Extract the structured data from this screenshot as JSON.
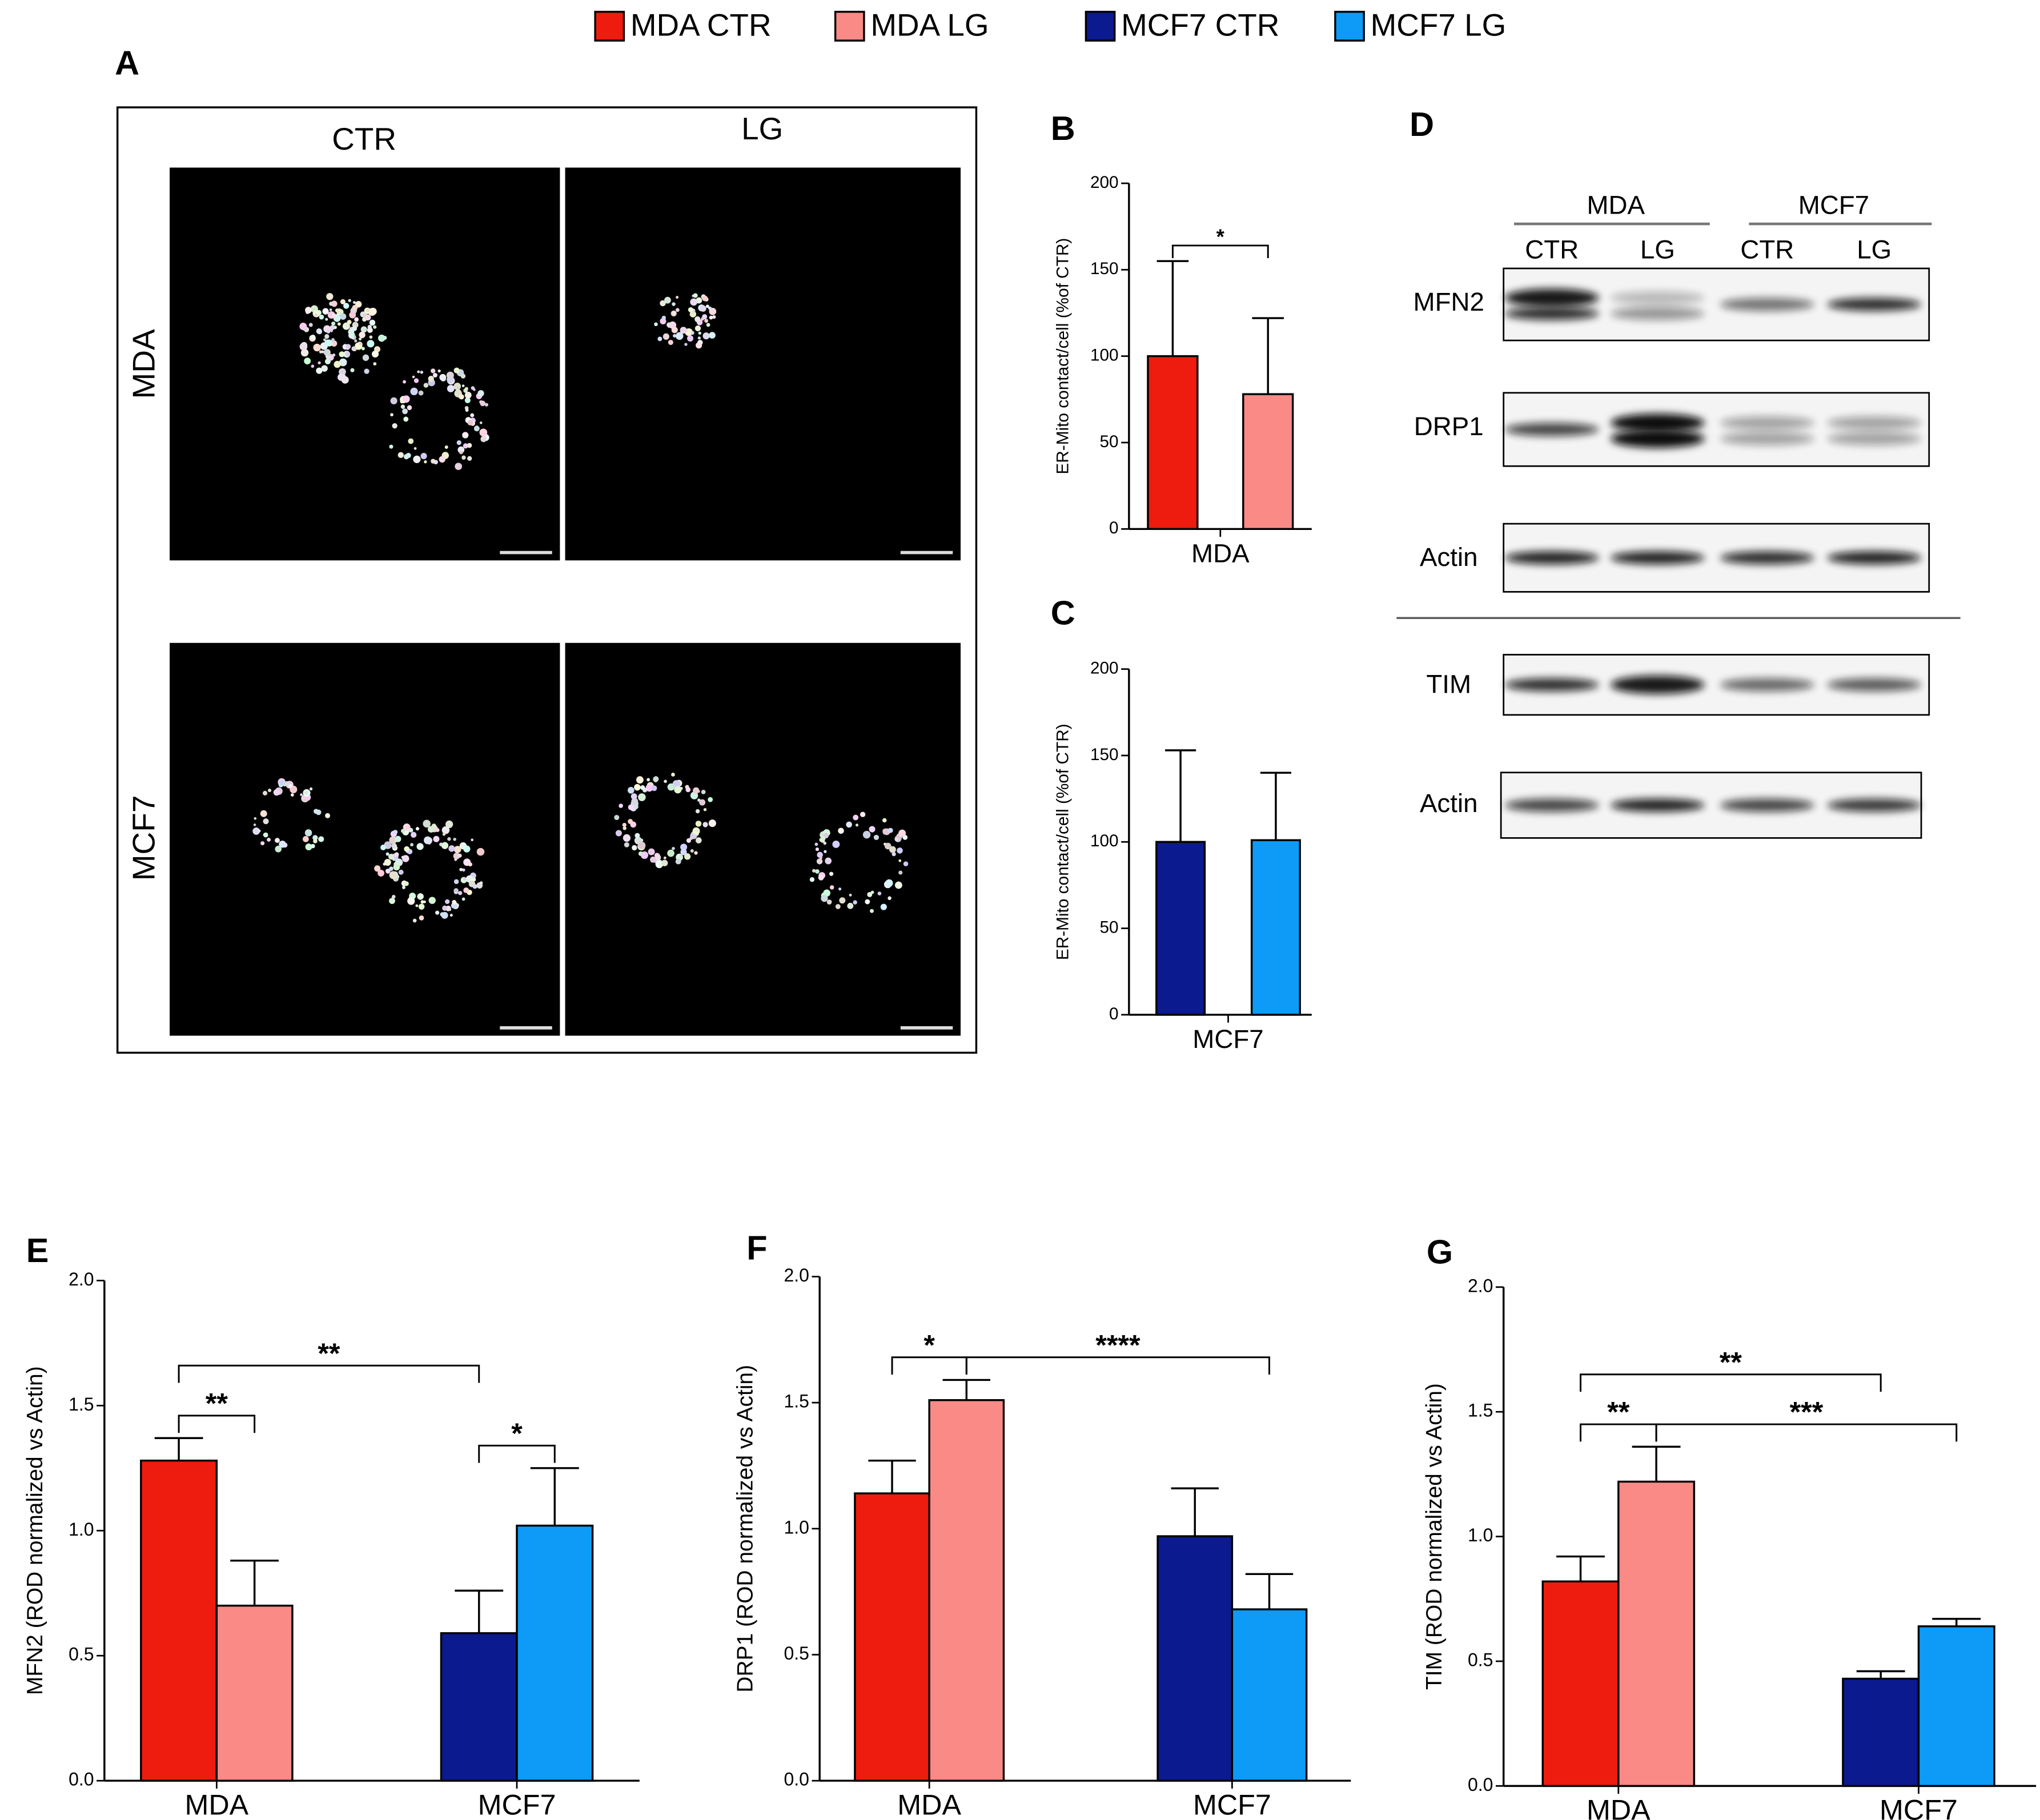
{
  "legend": [
    {
      "name": "MDA CTR",
      "color": "#ee1c0e"
    },
    {
      "name": "MDA LG",
      "color": "#f98a86"
    },
    {
      "name": "MCF7 CTR",
      "color": "#0b1a8f"
    },
    {
      "name": "MCF7 LG",
      "color": "#0d9bf7"
    }
  ],
  "panel_a": {
    "label": "A",
    "columns": [
      "CTR",
      "LG"
    ],
    "rows": [
      "MDA",
      "MCF7"
    ]
  },
  "panel_d": {
    "label": "D",
    "groups": [
      "MDA",
      "MCF7"
    ],
    "lanes": [
      "CTR",
      "LG",
      "CTR",
      "LG"
    ],
    "blots": [
      "MFN2",
      "DRP1",
      "Actin",
      "TIM",
      "Actin"
    ]
  },
  "chart_data": [
    {
      "label": "B",
      "type": "bar",
      "ylabel": "ER-Mito contact/cell (%of CTR)",
      "categories": [
        "MDA"
      ],
      "series": [
        {
          "name": "MDA CTR",
          "color": "#ee1c0e",
          "values": [
            100
          ],
          "errors": [
            55
          ]
        },
        {
          "name": "MDA LG",
          "color": "#f98a86",
          "values": [
            78
          ],
          "errors": [
            44
          ]
        }
      ],
      "ylim": [
        0,
        200
      ],
      "yticks": [
        0,
        50,
        100,
        150,
        200
      ],
      "annotations": [
        {
          "text": "*",
          "between": [
            "MDA CTR",
            "MDA LG"
          ]
        }
      ]
    },
    {
      "label": "C",
      "type": "bar",
      "ylabel": "ER-Mito contact/cell (%of CTR)",
      "categories": [
        "MCF7"
      ],
      "series": [
        {
          "name": "MCF7 CTR",
          "color": "#0b1a8f",
          "values": [
            100
          ],
          "errors": [
            53
          ]
        },
        {
          "name": "MCF7 LG",
          "color": "#0d9bf7",
          "values": [
            101
          ],
          "errors": [
            39
          ]
        }
      ],
      "ylim": [
        0,
        200
      ],
      "yticks": [
        0,
        50,
        100,
        150,
        200
      ],
      "annotations": []
    },
    {
      "label": "E",
      "type": "bar",
      "ylabel": "MFN2 (ROD normalized vs Actin)",
      "categories": [
        "MDA",
        "MCF7"
      ],
      "series": [
        {
          "name": "MDA CTR",
          "color": "#ee1c0e",
          "values": [
            1.28,
            null
          ],
          "errors": [
            0.09,
            null
          ]
        },
        {
          "name": "MDA LG",
          "color": "#f98a86",
          "values": [
            0.7,
            null
          ],
          "errors": [
            0.18,
            null
          ]
        },
        {
          "name": "MCF7 CTR",
          "color": "#0b1a8f",
          "values": [
            null,
            0.59
          ],
          "errors": [
            null,
            0.17
          ]
        },
        {
          "name": "MCF7 LG",
          "color": "#0d9bf7",
          "values": [
            null,
            1.02
          ],
          "errors": [
            null,
            0.23
          ]
        }
      ],
      "ylim": [
        0,
        2
      ],
      "yticks": [
        {
          "value": 0,
          "label": "0.0"
        },
        {
          "value": 0.5,
          "label": "0.5"
        },
        {
          "value": 1,
          "label": "1.0"
        },
        {
          "value": 1.5,
          "label": "1.5"
        },
        {
          "value": 2,
          "label": "2.0"
        }
      ],
      "annotations": [
        {
          "text": "**",
          "between": [
            "MDA CTR",
            "MDA LG"
          ]
        },
        {
          "text": "*",
          "between": [
            "MCF7 CTR",
            "MCF7 LG"
          ]
        },
        {
          "text": "**",
          "between": [
            "MDA CTR",
            "MCF7 CTR"
          ]
        }
      ]
    },
    {
      "label": "F",
      "type": "bar",
      "ylabel": "DRP1 (ROD normalized vs Actin)",
      "categories": [
        "MDA",
        "MCF7"
      ],
      "series": [
        {
          "name": "MDA CTR",
          "color": "#ee1c0e",
          "values": [
            1.14,
            null
          ],
          "errors": [
            0.13,
            null
          ]
        },
        {
          "name": "MDA LG",
          "color": "#f98a86",
          "values": [
            1.51,
            null
          ],
          "errors": [
            0.08,
            null
          ]
        },
        {
          "name": "MCF7 CTR",
          "color": "#0b1a8f",
          "values": [
            null,
            0.97
          ],
          "errors": [
            null,
            0.19
          ]
        },
        {
          "name": "MCF7 LG",
          "color": "#0d9bf7",
          "values": [
            null,
            0.68
          ],
          "errors": [
            null,
            0.14
          ]
        }
      ],
      "ylim": [
        0,
        2
      ],
      "yticks": [
        {
          "value": 0,
          "label": "0.0"
        },
        {
          "value": 0.5,
          "label": "0.5"
        },
        {
          "value": 1,
          "label": "1.0"
        },
        {
          "value": 1.5,
          "label": "1.5"
        },
        {
          "value": 2,
          "label": "2.0"
        }
      ],
      "annotations": [
        {
          "text": "*",
          "between": [
            "MDA CTR",
            "MDA LG"
          ]
        },
        {
          "text": "****",
          "between": [
            "MDA LG",
            "MCF7 LG"
          ]
        }
      ]
    },
    {
      "label": "G",
      "type": "bar",
      "ylabel": "TIM (ROD normalized vs Actin)",
      "categories": [
        "MDA",
        "MCF7"
      ],
      "series": [
        {
          "name": "MDA CTR",
          "color": "#ee1c0e",
          "values": [
            0.82,
            null
          ],
          "errors": [
            0.1,
            null
          ]
        },
        {
          "name": "MDA LG",
          "color": "#f98a86",
          "values": [
            1.22,
            null
          ],
          "errors": [
            0.14,
            null
          ]
        },
        {
          "name": "MCF7 CTR",
          "color": "#0b1a8f",
          "values": [
            null,
            0.43
          ],
          "errors": [
            null,
            0.03
          ]
        },
        {
          "name": "MCF7 LG",
          "color": "#0d9bf7",
          "values": [
            null,
            0.64
          ],
          "errors": [
            null,
            0.03
          ]
        }
      ],
      "ylim": [
        0,
        2
      ],
      "yticks": [
        {
          "value": 0,
          "label": "0.0"
        },
        {
          "value": 0.5,
          "label": "0.5"
        },
        {
          "value": 1,
          "label": "1.0"
        },
        {
          "value": 1.5,
          "label": "1.5"
        },
        {
          "value": 2,
          "label": "2.0"
        }
      ],
      "annotations": [
        {
          "text": "**",
          "between": [
            "MDA CTR",
            "MDA LG"
          ]
        },
        {
          "text": "***",
          "between": [
            "MDA LG",
            "MCF7 LG"
          ]
        },
        {
          "text": "**",
          "between": [
            "MDA CTR",
            "MCF7 CTR"
          ]
        }
      ]
    }
  ]
}
